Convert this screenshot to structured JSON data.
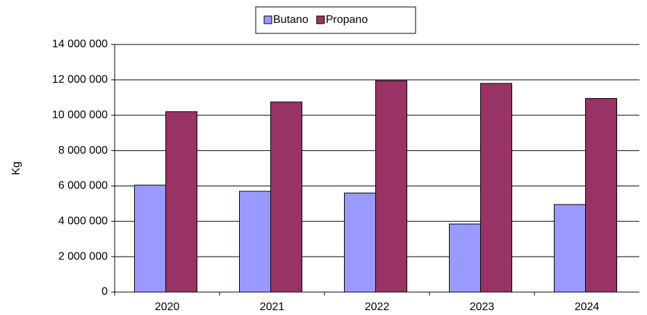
{
  "chart_data": {
    "type": "bar",
    "y_label": "Kg",
    "categories": [
      "2020",
      "2021",
      "2022",
      "2023",
      "2024"
    ],
    "series": [
      {
        "name": "Butano",
        "color": "#9999ff",
        "values": [
          6050000,
          5700000,
          5600000,
          3850000,
          4950000
        ]
      },
      {
        "name": "Propano",
        "color": "#993366",
        "values": [
          10200000,
          10750000,
          11950000,
          11800000,
          10950000
        ]
      }
    ],
    "ylim": [
      0,
      14000000
    ],
    "yticks": [
      0,
      {
        "value": 2000000,
        "label": "2 000 000"
      },
      {
        "value": 4000000,
        "label": "4 000 000"
      },
      {
        "value": 6000000,
        "label": "6 000 000"
      },
      {
        "value": 8000000,
        "label": "8 000 000"
      },
      {
        "value": 10000000,
        "label": "10 000 000"
      },
      {
        "value": 12000000,
        "label": "12 000 000"
      },
      {
        "value": 14000000,
        "label": "14 000 000"
      }
    ],
    "grid": true,
    "legend": "top"
  }
}
